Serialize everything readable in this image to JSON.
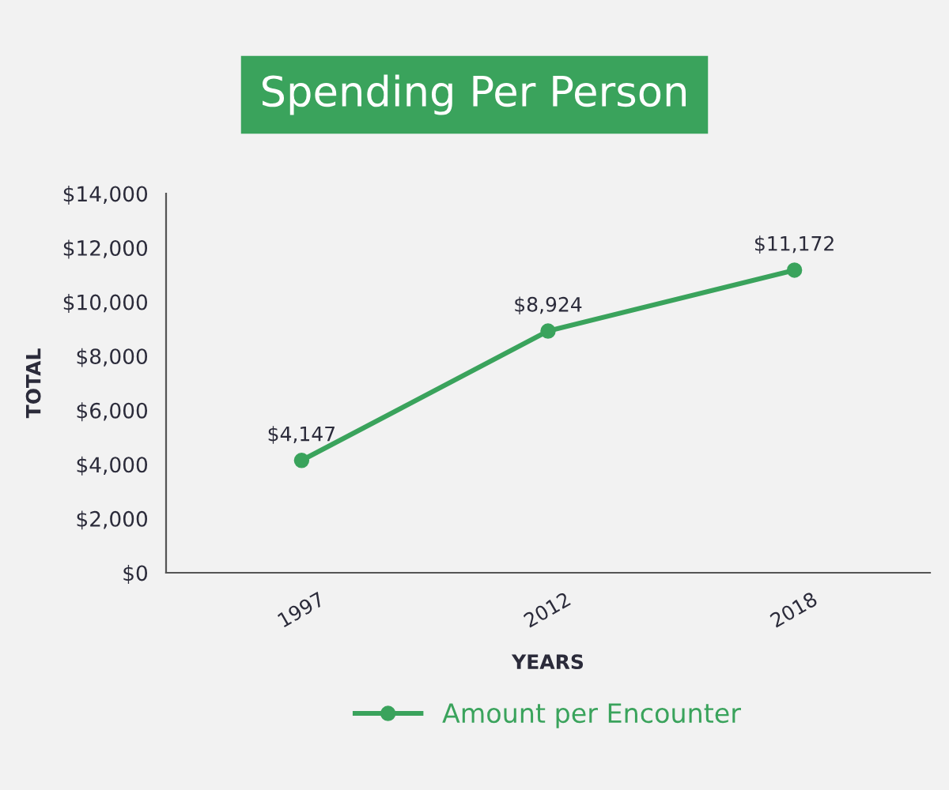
{
  "chart_data": {
    "type": "line",
    "title": "Spending Per Person",
    "xlabel": "YEARS",
    "ylabel": "TOTAL",
    "categories": [
      "1997",
      "2012",
      "2018"
    ],
    "series": [
      {
        "name": "Amount per Encounter",
        "color": "#3aa35c",
        "values": [
          4147,
          8924,
          11172
        ],
        "value_labels": [
          "$4,147",
          "$8,924",
          "$11,172"
        ]
      }
    ],
    "ylim": [
      0,
      14000
    ],
    "yticks": [
      {
        "value": 0,
        "label": "$0"
      },
      {
        "value": 2000,
        "label": "$2,000"
      },
      {
        "value": 4000,
        "label": "$4,000"
      },
      {
        "value": 6000,
        "label": "$6,000"
      },
      {
        "value": 8000,
        "label": "$8,000"
      },
      {
        "value": 10000,
        "label": "$10,000"
      },
      {
        "value": 12000,
        "label": "$12,000"
      },
      {
        "value": 14000,
        "label": "$14,000"
      }
    ],
    "grid": false,
    "legend": "bottom",
    "marker": "circle",
    "line_style": "solid"
  }
}
